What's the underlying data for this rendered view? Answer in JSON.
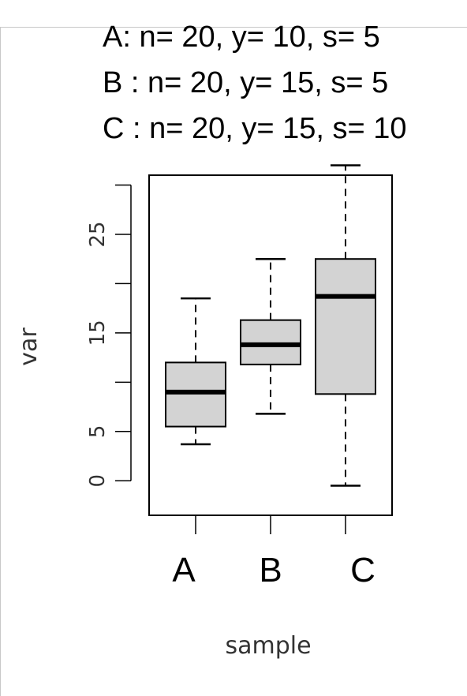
{
  "annotations": [
    "A: n= 20, y= 10, s= 5",
    "B : n= 20, y= 15, s= 5",
    "C : n= 20, y= 15, s= 10"
  ],
  "chart_data": {
    "type": "box",
    "title": "",
    "xlabel": "sample",
    "ylabel": "var",
    "ylim": [
      -3.5,
      31
    ],
    "y_ticks": [
      0,
      5,
      15,
      25
    ],
    "y_minor_ticks": [
      10,
      20,
      30
    ],
    "categories": [
      "A",
      "B",
      "C"
    ],
    "boxes": [
      {
        "name": "A",
        "whisker_low": 3.7,
        "q1": 5.5,
        "median": 9.0,
        "q3": 12.0,
        "whisker_high": 18.5
      },
      {
        "name": "B",
        "whisker_low": 6.8,
        "q1": 11.8,
        "median": 13.8,
        "q3": 16.3,
        "whisker_high": 22.5
      },
      {
        "name": "C",
        "whisker_low": -0.5,
        "q1": 8.8,
        "median": 18.7,
        "q3": 22.5,
        "whisker_high": 32.0
      }
    ],
    "box_fill": "#d3d3d3",
    "stroke": "#000000",
    "grid": false
  }
}
